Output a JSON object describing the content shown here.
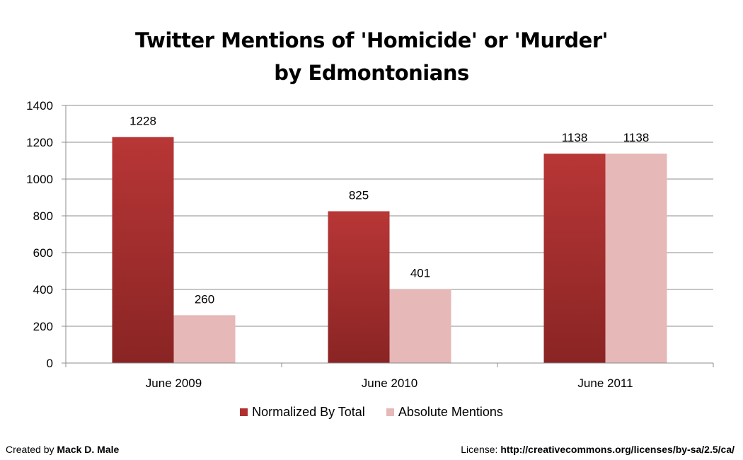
{
  "chart_data": {
    "type": "bar",
    "title_line1": "Twitter Mentions of 'Homicide' or 'Murder'",
    "title_line2": "by Edmontonians",
    "categories": [
      "June 2009",
      "June 2010",
      "June 2011"
    ],
    "series": [
      {
        "name": "Normalized By Total",
        "values": [
          1228,
          825,
          1138
        ],
        "color": "#b03030"
      },
      {
        "name": "Absolute Mentions",
        "values": [
          260,
          401,
          1138
        ],
        "color": "#e6b8b8"
      }
    ],
    "ylim": [
      0,
      1400
    ],
    "yticks": [
      0,
      200,
      400,
      600,
      800,
      1000,
      1200,
      1400
    ],
    "grid": true,
    "legend_position": "bottom"
  },
  "footer": {
    "created_prefix": "Created by ",
    "author": "Mack D. Male",
    "license_prefix": "License: ",
    "license_url": "http://creativecommons.org/licenses/by-sa/2.5/ca/"
  }
}
